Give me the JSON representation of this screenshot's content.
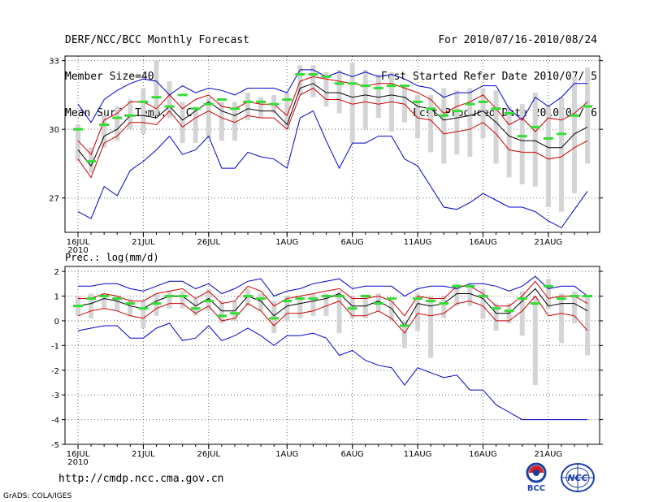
{
  "header": {
    "title": "DERF/NCC/BCC Monthly Forecast",
    "member_size": "Member Size=40",
    "variable": "Mean Surf. Temp.: °C",
    "forecast_range": "For 2010/07/16-2010/08/24",
    "fcst_started": "Fcst Started Refer Date 2010/07/15",
    "fcst_produced": "Fcst Produced Date 2010/07/16"
  },
  "x_axis": {
    "tick_labels": [
      "16JUL",
      "21JUL",
      "26JUL",
      "1AUG",
      "6AUG",
      "11AUG",
      "16AUG",
      "21AUG"
    ],
    "tick_days": [
      0,
      5,
      10,
      16,
      21,
      26,
      31,
      36
    ],
    "year_label": "2010",
    "n_days": 40
  },
  "colors": {
    "envelope": "#0000cc",
    "spread": "#cc0000",
    "mean": "#000000",
    "box": "#d4d4d4",
    "median": "#33dd33",
    "grid": "#666666"
  },
  "footer": {
    "url": "http://cmdp.ncc.cma.gov.cn",
    "credit": "GrADS: COLA/IGES",
    "logo_left": "BCC",
    "logo_right": "NCC"
  },
  "chart_data": [
    {
      "type": "line",
      "name": "temperature",
      "ylabel": "",
      "ylim": [
        25.5,
        33.2
      ],
      "yticks": [
        27,
        30,
        33
      ],
      "series": [
        {
          "name": "max",
          "values": [
            31.1,
            30.3,
            31.3,
            31.7,
            32.0,
            32.2,
            32.1,
            31.5,
            31.9,
            31.6,
            31.8,
            31.7,
            31.5,
            31.8,
            31.8,
            31.8,
            31.6,
            32.6,
            32.6,
            32.3,
            32.5,
            32.3,
            32.5,
            32.3,
            32.4,
            32.2,
            31.9,
            31.8,
            31.4,
            31.6,
            31.6,
            31.9,
            31.9,
            30.9,
            30.4,
            31.4,
            31.0,
            31.4,
            32.0,
            32.0
          ]
        },
        {
          "name": "upper",
          "values": [
            29.5,
            28.9,
            30.4,
            30.7,
            31.2,
            31.2,
            30.9,
            31.5,
            30.9,
            31.3,
            31.5,
            31.0,
            30.9,
            31.2,
            31.1,
            31.1,
            30.6,
            32.1,
            32.3,
            32.2,
            32.1,
            32.0,
            31.9,
            32.0,
            32.0,
            31.8,
            31.6,
            31.3,
            30.7,
            31.0,
            31.2,
            31.5,
            30.9,
            30.2,
            30.5,
            29.9,
            30.5,
            30.4,
            30.7,
            31.2
          ]
        },
        {
          "name": "mean",
          "values": [
            29.1,
            28.4,
            29.7,
            30.0,
            30.6,
            30.6,
            30.5,
            31.0,
            30.4,
            30.8,
            31.2,
            30.8,
            30.6,
            30.9,
            30.8,
            30.8,
            30.2,
            31.8,
            32.0,
            31.6,
            31.6,
            31.4,
            31.5,
            31.4,
            31.5,
            31.4,
            31.0,
            30.9,
            30.4,
            30.5,
            30.6,
            30.8,
            30.3,
            29.7,
            29.5,
            29.5,
            29.2,
            29.2,
            29.8,
            30.1
          ]
        },
        {
          "name": "lower",
          "values": [
            28.7,
            27.9,
            29.4,
            29.7,
            30.3,
            30.3,
            30.2,
            30.8,
            30.1,
            30.5,
            30.8,
            30.5,
            30.3,
            30.6,
            30.5,
            30.5,
            30.0,
            31.5,
            31.8,
            31.3,
            31.3,
            31.1,
            31.2,
            31.1,
            31.2,
            31.1,
            30.5,
            30.4,
            29.8,
            29.9,
            30.0,
            30.3,
            29.8,
            29.1,
            29.0,
            29.0,
            28.7,
            28.8,
            29.2,
            29.5
          ]
        },
        {
          "name": "min",
          "values": [
            26.4,
            26.1,
            27.5,
            27.1,
            28.2,
            28.6,
            29.1,
            29.7,
            28.9,
            29.1,
            29.7,
            28.3,
            28.3,
            29.0,
            28.8,
            28.7,
            28.3,
            30.5,
            30.8,
            29.5,
            28.3,
            29.4,
            29.4,
            29.7,
            29.7,
            28.7,
            28.4,
            27.5,
            26.6,
            26.5,
            26.8,
            27.2,
            26.9,
            26.6,
            26.6,
            26.4,
            26.0,
            25.7,
            26.5,
            27.3
          ]
        }
      ],
      "boxes": [
        [
          28.6,
          30.2
        ],
        [
          28.1,
          29.2
        ],
        [
          29.2,
          30.6
        ],
        [
          29.5,
          31.0
        ],
        [
          30.0,
          31.3
        ],
        [
          29.8,
          31.8
        ],
        [
          30.6,
          33.0
        ],
        [
          30.5,
          32.1
        ],
        [
          29.4,
          31.2
        ],
        [
          29.4,
          31.0
        ],
        [
          29.6,
          31.4
        ],
        [
          29.5,
          31.2
        ],
        [
          29.5,
          31.2
        ],
        [
          30.4,
          31.6
        ],
        [
          30.5,
          31.4
        ],
        [
          30.7,
          31.5
        ],
        [
          30.0,
          31.6
        ],
        [
          31.5,
          32.8
        ],
        [
          31.4,
          32.8
        ],
        [
          31.0,
          32.5
        ],
        [
          30.7,
          32.6
        ],
        [
          29.4,
          32.9
        ],
        [
          30.0,
          32.6
        ],
        [
          30.5,
          32.4
        ],
        [
          29.9,
          32.5
        ],
        [
          30.3,
          31.9
        ],
        [
          29.6,
          31.5
        ],
        [
          29.0,
          31.5
        ],
        [
          28.5,
          31.8
        ],
        [
          28.9,
          31.7
        ],
        [
          28.8,
          31.8
        ],
        [
          29.6,
          31.8
        ],
        [
          28.5,
          31.7
        ],
        [
          27.9,
          31.0
        ],
        [
          27.6,
          31.1
        ],
        [
          27.5,
          31.6
        ],
        [
          26.6,
          31.0
        ],
        [
          26.4,
          31.4
        ],
        [
          27.2,
          32.3
        ],
        [
          28.5,
          32.7
        ]
      ],
      "medians": [
        30.0,
        28.6,
        30.2,
        30.5,
        30.6,
        31.2,
        31.4,
        31.0,
        31.5,
        30.9,
        31.1,
        31.3,
        30.9,
        31.2,
        31.2,
        31.1,
        31.3,
        32.4,
        32.4,
        32.3,
        32.0,
        32.0,
        31.9,
        31.8,
        31.9,
        31.9,
        31.2,
        30.9,
        30.6,
        30.8,
        31.1,
        31.2,
        30.9,
        30.7,
        29.7,
        30.1,
        29.6,
        29.8,
        30.6,
        31.0
      ]
    },
    {
      "type": "line",
      "name": "precipitation",
      "ylabel": "Prec.: log(mm/d)",
      "ylim": [
        -5,
        2.2
      ],
      "yticks": [
        -5,
        -4,
        -3,
        -2,
        -1,
        0,
        1,
        2
      ],
      "series": [
        {
          "name": "max",
          "values": [
            1.4,
            1.4,
            1.5,
            1.5,
            1.3,
            1.2,
            1.4,
            1.6,
            1.6,
            1.3,
            1.5,
            1.1,
            1.3,
            1.6,
            1.7,
            1.0,
            1.2,
            1.3,
            1.5,
            1.6,
            1.7,
            1.3,
            1.4,
            1.4,
            1.4,
            1.0,
            1.3,
            1.4,
            1.4,
            1.3,
            1.5,
            1.5,
            1.4,
            1.2,
            1.4,
            1.8,
            1.3,
            1.4,
            1.4,
            1.0
          ]
        },
        {
          "name": "upper",
          "values": [
            0.9,
            0.9,
            1.1,
            1.0,
            0.8,
            0.8,
            1.1,
            1.2,
            1.3,
            0.9,
            1.2,
            0.7,
            0.8,
            1.4,
            1.2,
            0.6,
            0.9,
            1.0,
            1.1,
            1.2,
            1.3,
            0.9,
            0.9,
            1.0,
            0.8,
            0.2,
            1.0,
            0.9,
            0.9,
            1.4,
            1.4,
            1.1,
            0.6,
            0.6,
            1.0,
            1.6,
            0.9,
            1.0,
            1.0,
            0.7
          ]
        },
        {
          "name": "mean",
          "values": [
            0.6,
            0.7,
            0.9,
            0.8,
            0.6,
            0.5,
            0.8,
            1.0,
            1.0,
            0.6,
            0.9,
            0.4,
            0.4,
            1.0,
            0.8,
            0.2,
            0.6,
            0.7,
            0.8,
            0.9,
            1.1,
            0.6,
            0.6,
            0.8,
            0.5,
            -0.2,
            0.7,
            0.6,
            0.7,
            1.1,
            1.1,
            0.9,
            0.3,
            0.3,
            0.8,
            1.3,
            0.6,
            0.7,
            0.7,
            0.4
          ]
        },
        {
          "name": "lower",
          "values": [
            0.2,
            0.4,
            0.5,
            0.4,
            0.2,
            0.1,
            0.5,
            0.7,
            0.7,
            0.3,
            0.6,
            0.0,
            0.1,
            0.7,
            0.4,
            -0.2,
            0.3,
            0.3,
            0.4,
            0.6,
            0.8,
            0.2,
            0.2,
            0.4,
            0.1,
            -0.5,
            0.3,
            0.2,
            0.3,
            0.7,
            0.8,
            0.6,
            0.0,
            0.0,
            0.4,
            1.0,
            0.2,
            0.3,
            0.2,
            -0.4
          ]
        },
        {
          "name": "min",
          "values": [
            -0.4,
            -0.3,
            -0.2,
            -0.2,
            -0.7,
            -0.7,
            -0.3,
            -0.1,
            -0.8,
            -0.7,
            -0.2,
            -0.8,
            -0.6,
            -0.3,
            -0.6,
            -1.0,
            -0.6,
            -0.6,
            -0.5,
            -0.7,
            -1.4,
            -1.2,
            -1.6,
            -1.8,
            -1.9,
            -2.6,
            -1.9,
            -2.1,
            -2.3,
            -2.2,
            -2.8,
            -2.8,
            -3.4,
            -3.7,
            -4.0,
            -4.0,
            -4.0,
            -4.0,
            -4.0,
            -4.0
          ]
        }
      ],
      "boxes": [
        [
          0.2,
          1.0
        ],
        [
          0.1,
          1.1
        ],
        [
          0.5,
          1.1
        ],
        [
          0.4,
          1.0
        ],
        [
          0.2,
          0.9
        ],
        [
          -0.3,
          0.8
        ],
        [
          0.2,
          1.1
        ],
        [
          0.5,
          1.2
        ],
        [
          0.5,
          1.2
        ],
        [
          0.2,
          0.9
        ],
        [
          0.4,
          1.3
        ],
        [
          -0.1,
          0.8
        ],
        [
          0.0,
          0.8
        ],
        [
          0.6,
          1.3
        ],
        [
          0.4,
          1.1
        ],
        [
          -0.5,
          0.8
        ],
        [
          0.0,
          1.0
        ],
        [
          0.1,
          1.0
        ],
        [
          0.2,
          1.1
        ],
        [
          0.2,
          1.1
        ],
        [
          -0.5,
          1.2
        ],
        [
          0.1,
          1.0
        ],
        [
          0.1,
          1.0
        ],
        [
          0.4,
          1.1
        ],
        [
          0.0,
          0.8
        ],
        [
          -1.1,
          0.0
        ],
        [
          -0.4,
          1.1
        ],
        [
          -1.5,
          1.0
        ],
        [
          0.1,
          1.0
        ],
        [
          0.6,
          1.5
        ],
        [
          0.6,
          1.5
        ],
        [
          0.1,
          1.3
        ],
        [
          -0.4,
          0.7
        ],
        [
          -0.1,
          0.7
        ],
        [
          -0.6,
          1.2
        ],
        [
          -2.6,
          1.0
        ],
        [
          0.5,
          1.7
        ],
        [
          -0.9,
          1.1
        ],
        [
          -0.1,
          1.2
        ],
        [
          -1.4,
          1.0
        ]
      ],
      "medians": [
        0.6,
        0.9,
        1.0,
        0.9,
        0.7,
        0.5,
        0.7,
        1.0,
        1.0,
        0.5,
        0.8,
        0.2,
        0.3,
        1.0,
        0.9,
        0.1,
        0.8,
        0.9,
        0.9,
        1.0,
        1.0,
        0.5,
        1.0,
        0.7,
        0.9,
        -0.2,
        0.9,
        0.8,
        0.7,
        1.4,
        1.4,
        1.0,
        0.5,
        0.4,
        0.9,
        0.7,
        1.4,
        0.9,
        1.0,
        1.0
      ]
    }
  ]
}
